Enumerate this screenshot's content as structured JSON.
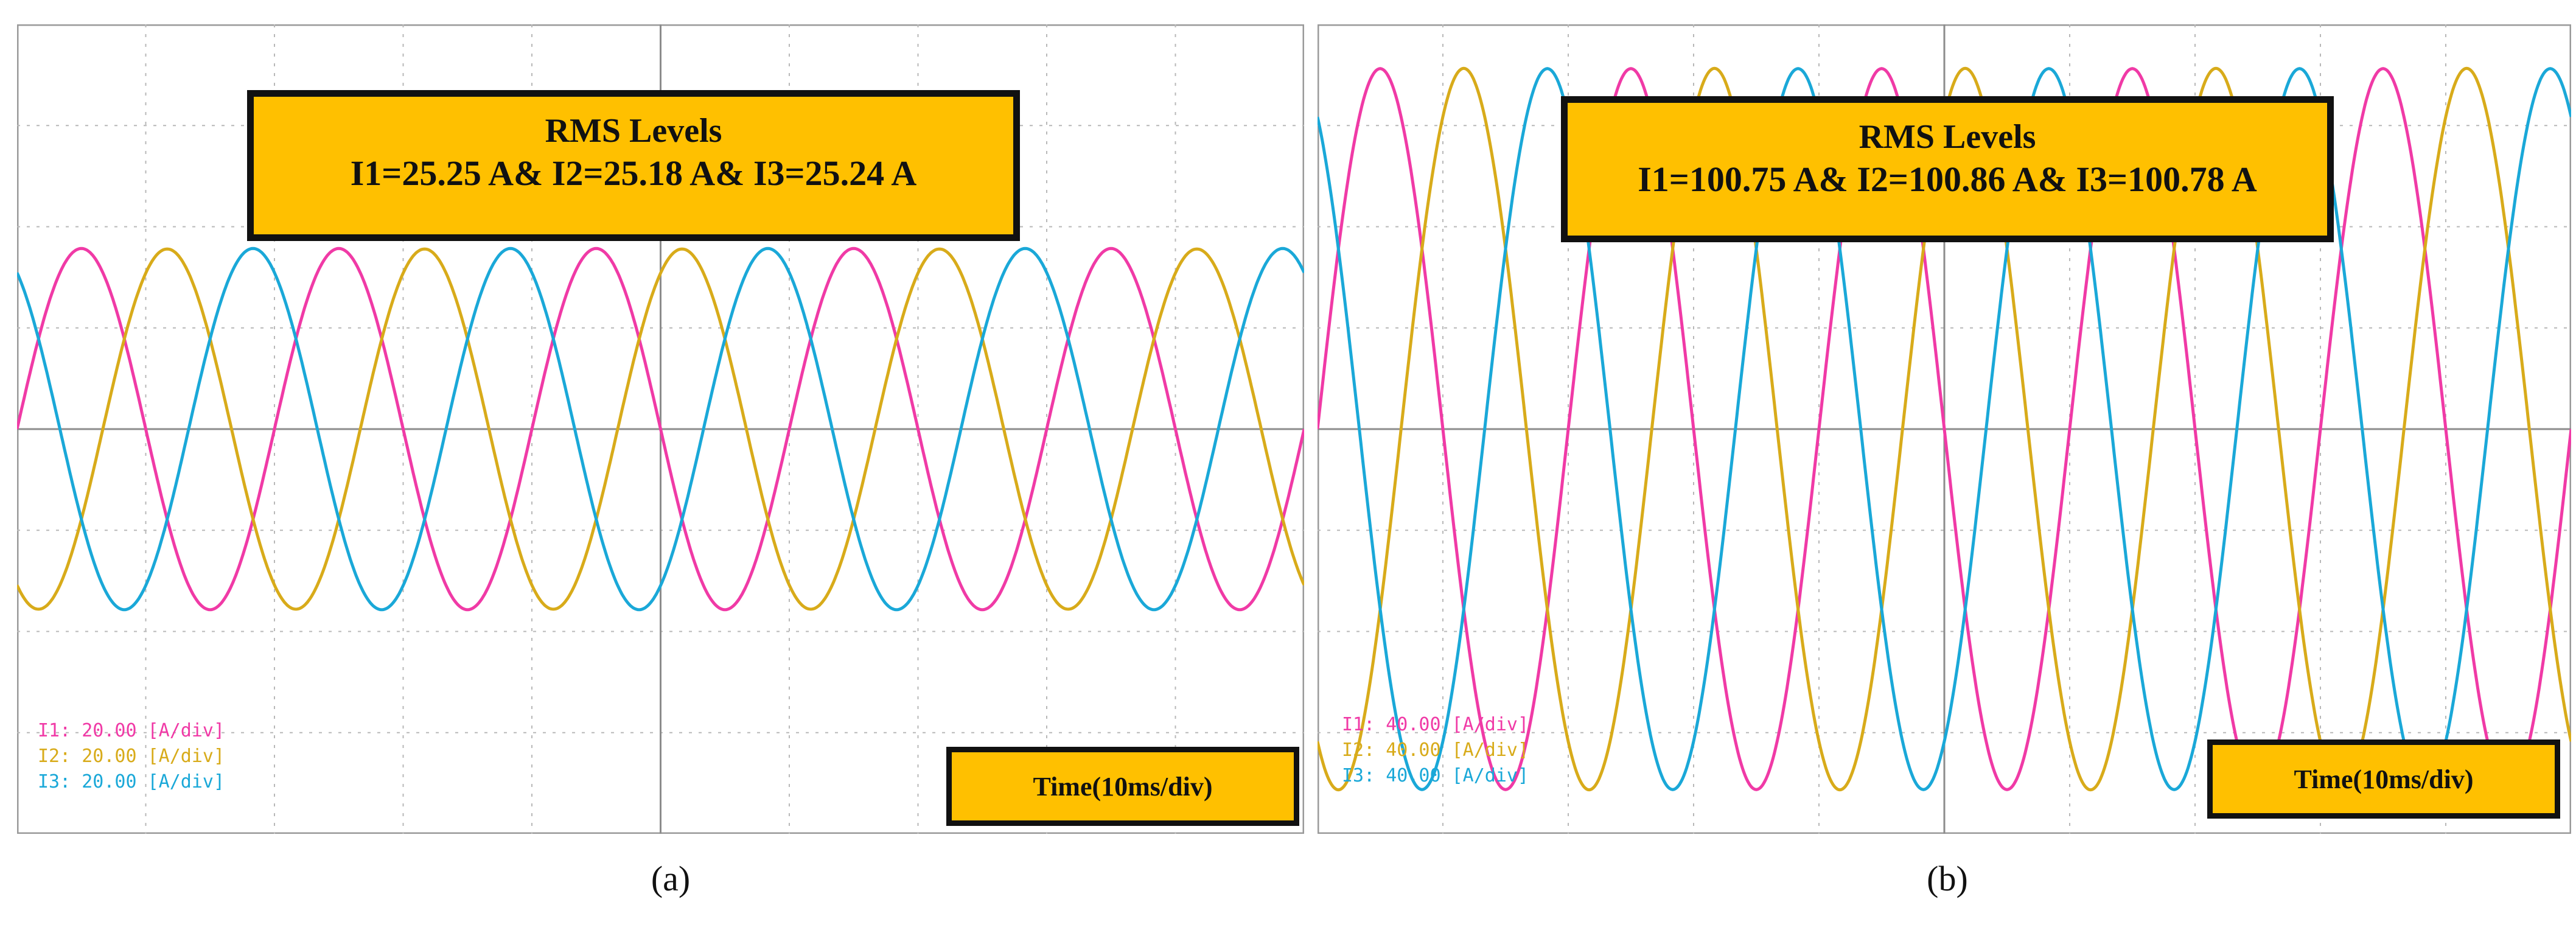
{
  "colors": {
    "I1": "#f03aa6",
    "I2": "#d8ab1a",
    "I3": "#1aa8d8",
    "box": "#ffc000"
  },
  "panels": [
    {
      "id": "a",
      "caption": "(a)",
      "rms_title": "RMS Levels",
      "rms_values": "I1=25.25 A& I2=25.18 A& I3=25.24 A",
      "time_label": "Time(10ms/div)",
      "legend": [
        {
          "text": "I1: 20.00 [A/div]",
          "color": "#f03aa6"
        },
        {
          "text": "I2: 20.00 [A/div]",
          "color": "#d8ab1a"
        },
        {
          "text": "I3: 20.00 [A/div]",
          "color": "#1aa8d8"
        }
      ]
    },
    {
      "id": "b",
      "caption": "(b)",
      "rms_title": "RMS Levels",
      "rms_values": "I1=100.75 A& I2=100.86 A& I3=100.78 A",
      "time_label": "Time(10ms/div)",
      "legend": [
        {
          "text": "I1: 40.00 [A/div]",
          "color": "#f03aa6"
        },
        {
          "text": "I2: 40.00 [A/div]",
          "color": "#d8ab1a"
        },
        {
          "text": "I3: 40.00 [A/div]",
          "color": "#1aa8d8"
        }
      ]
    }
  ],
  "chart_data": [
    {
      "type": "line",
      "panel": "a",
      "x_unit": "ms",
      "x_per_div": 10,
      "x_range": [
        0,
        100
      ],
      "y_unit": "A",
      "y_per_div": 20,
      "y_range": [
        -80,
        80
      ],
      "frequency_hz": 50,
      "grid": true,
      "series": [
        {
          "name": "I1",
          "rms": 25.25,
          "peak": 35.7,
          "phase_deg": 0
        },
        {
          "name": "I2",
          "rms": 25.18,
          "peak": 35.6,
          "phase_deg": -120
        },
        {
          "name": "I3",
          "rms": 25.24,
          "peak": 35.7,
          "phase_deg": 120
        }
      ]
    },
    {
      "type": "line",
      "panel": "b",
      "x_unit": "ms",
      "x_per_div": 10,
      "x_range": [
        0,
        100
      ],
      "y_unit": "A",
      "y_per_div": 40,
      "y_range": [
        -160,
        160
      ],
      "frequency_hz": 50,
      "grid": true,
      "series": [
        {
          "name": "I1",
          "rms": 100.75,
          "peak": 142.5,
          "phase_deg": 0
        },
        {
          "name": "I2",
          "rms": 100.86,
          "peak": 142.6,
          "phase_deg": -120
        },
        {
          "name": "I3",
          "rms": 100.78,
          "peak": 142.5,
          "phase_deg": 120
        }
      ]
    }
  ]
}
